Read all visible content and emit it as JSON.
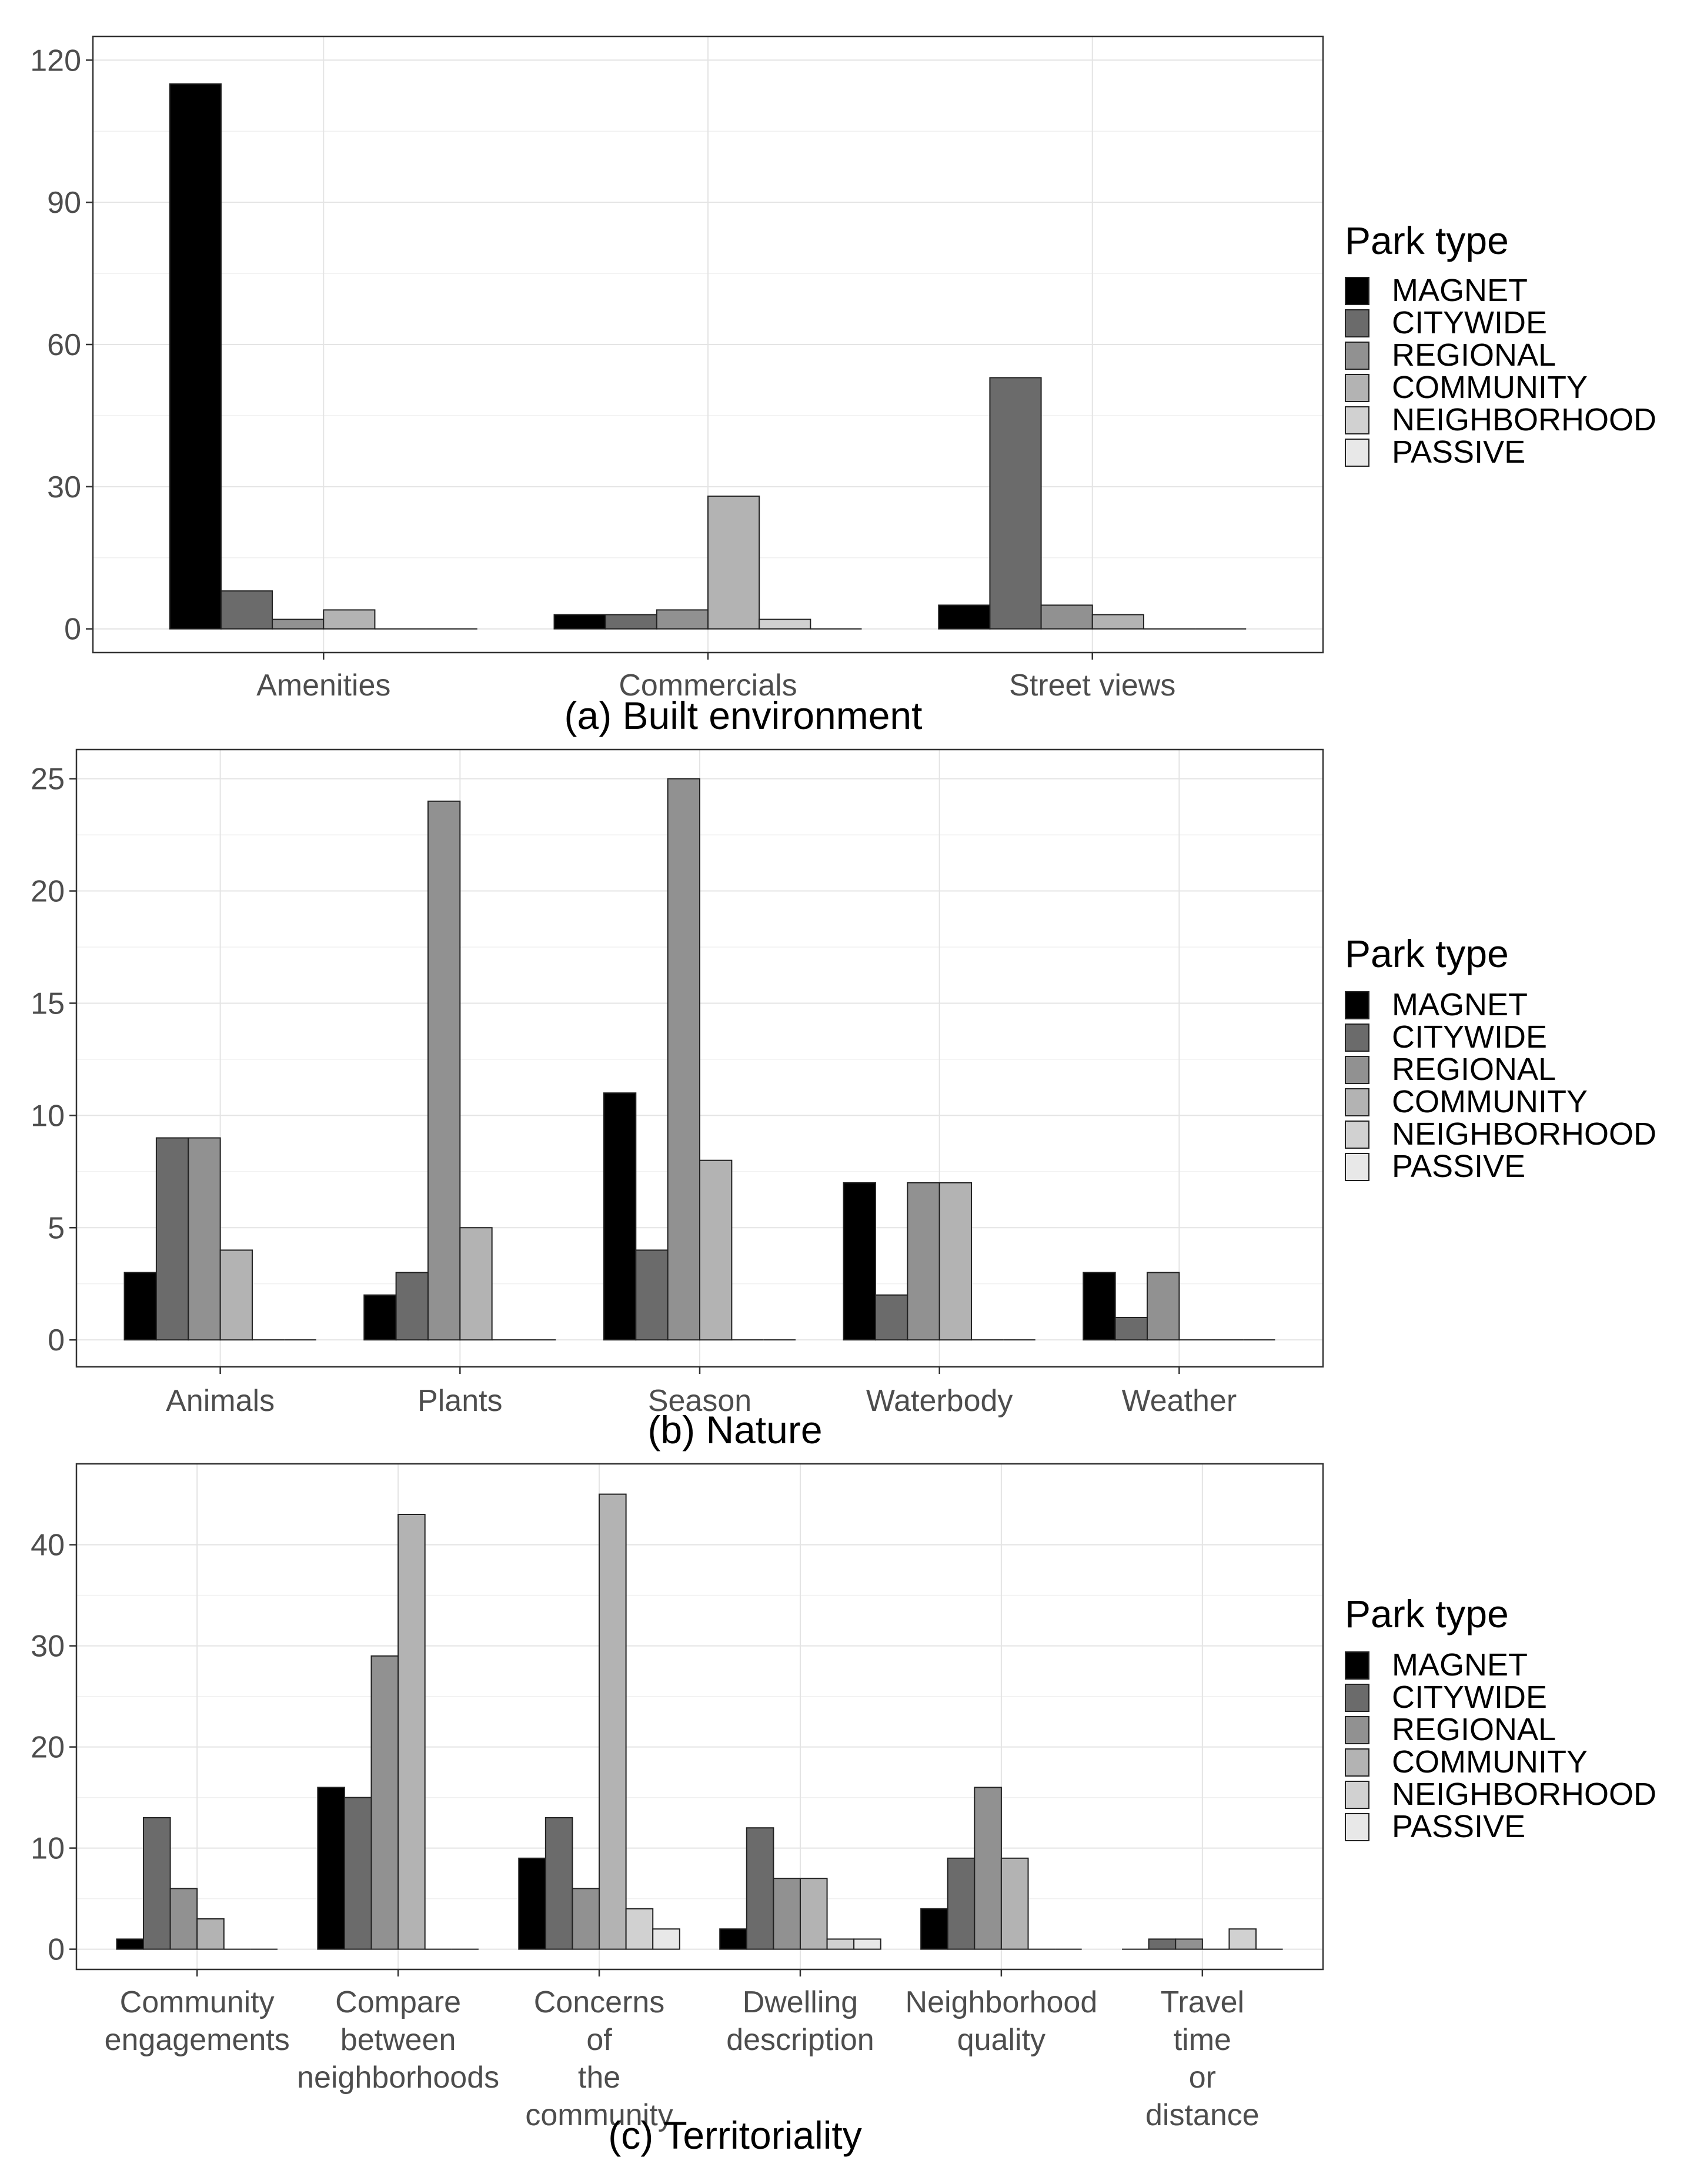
{
  "legend": {
    "title": "Park type",
    "entries": [
      "MAGNET",
      "CITYWIDE",
      "REGIONAL",
      "COMMUNITY",
      "NEIGHBORHOOD",
      "PASSIVE"
    ],
    "colors": [
      "#000000",
      "#6b6b6b",
      "#919191",
      "#b3b3b3",
      "#d1d1d1",
      "#e8e8e8"
    ]
  },
  "chart_data": [
    {
      "type": "bar",
      "title": "(a) Built environment",
      "xlabel": "",
      "ylabel": "",
      "categories": [
        [
          "Amenities"
        ],
        [
          "Commercials"
        ],
        [
          "Street views"
        ]
      ],
      "yticks": [
        0,
        30,
        60,
        90,
        120
      ],
      "ylim": [
        -5,
        125
      ],
      "grid": true,
      "legend_position": "right",
      "series": [
        {
          "name": "MAGNET",
          "values": [
            115,
            3,
            5
          ]
        },
        {
          "name": "CITYWIDE",
          "values": [
            8,
            3,
            53
          ]
        },
        {
          "name": "REGIONAL",
          "values": [
            2,
            4,
            5
          ]
        },
        {
          "name": "COMMUNITY",
          "values": [
            4,
            28,
            3
          ]
        },
        {
          "name": "NEIGHBORHOOD",
          "values": [
            0,
            2,
            0
          ]
        },
        {
          "name": "PASSIVE",
          "values": [
            0,
            0,
            0
          ]
        }
      ]
    },
    {
      "type": "bar",
      "title": "(b) Nature",
      "xlabel": "",
      "ylabel": "",
      "categories": [
        [
          "Animals"
        ],
        [
          "Plants"
        ],
        [
          "Season"
        ],
        [
          "Waterbody"
        ],
        [
          "Weather"
        ]
      ],
      "yticks": [
        0,
        5,
        10,
        15,
        20,
        25
      ],
      "ylim": [
        -1.2,
        26.3
      ],
      "grid": true,
      "legend_position": "right",
      "series": [
        {
          "name": "MAGNET",
          "values": [
            3,
            2,
            11,
            7,
            3
          ]
        },
        {
          "name": "CITYWIDE",
          "values": [
            9,
            3,
            4,
            2,
            1
          ]
        },
        {
          "name": "REGIONAL",
          "values": [
            9,
            24,
            25,
            7,
            3
          ]
        },
        {
          "name": "COMMUNITY",
          "values": [
            4,
            5,
            8,
            7,
            0
          ]
        },
        {
          "name": "NEIGHBORHOOD",
          "values": [
            0,
            0,
            0,
            0,
            0
          ]
        },
        {
          "name": "PASSIVE",
          "values": [
            0,
            0,
            0,
            0,
            0
          ]
        }
      ]
    },
    {
      "type": "bar",
      "title": "(c) Territoriality",
      "xlabel": "",
      "ylabel": "",
      "categories": [
        [
          "Community",
          "engagements"
        ],
        [
          "Compare",
          "between",
          "neighborhoods"
        ],
        [
          "Concerns",
          "of",
          "the",
          "community"
        ],
        [
          "Dwelling",
          "description"
        ],
        [
          "Neighborhood",
          "quality"
        ],
        [
          "Travel",
          "time",
          "or",
          "distance"
        ]
      ],
      "yticks": [
        0,
        10,
        20,
        30,
        40
      ],
      "ylim": [
        -2,
        48
      ],
      "grid": true,
      "legend_position": "right",
      "series": [
        {
          "name": "MAGNET",
          "values": [
            1,
            16,
            9,
            2,
            4,
            0
          ]
        },
        {
          "name": "CITYWIDE",
          "values": [
            13,
            15,
            13,
            12,
            9,
            1
          ]
        },
        {
          "name": "REGIONAL",
          "values": [
            6,
            29,
            6,
            7,
            16,
            1
          ]
        },
        {
          "name": "COMMUNITY",
          "values": [
            3,
            43,
            45,
            7,
            9,
            0
          ]
        },
        {
          "name": "NEIGHBORHOOD",
          "values": [
            0,
            0,
            4,
            1,
            0,
            2
          ]
        },
        {
          "name": "PASSIVE",
          "values": [
            0,
            0,
            2,
            1,
            0,
            0
          ]
        }
      ]
    }
  ]
}
